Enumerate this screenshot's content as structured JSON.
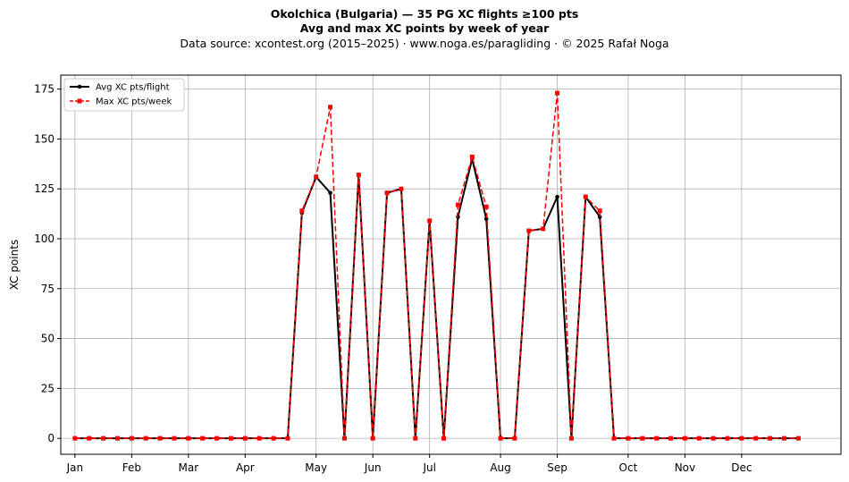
{
  "chart_data": {
    "type": "line",
    "title": "Okolchica (Bulgaria)  —  35 PG XC flights ≥100 pts",
    "subtitle": "Avg and max XC points by week of year",
    "source_line": "Data source: xcontest.org (2015–2025)  ·  www.noga.es/paragliding  ·  © 2025 Rafał Noga",
    "xlabel": "",
    "ylabel": "XC points",
    "x_week_range": [
      0,
      55
    ],
    "ylim": [
      -8,
      182
    ],
    "yticks": [
      0,
      25,
      50,
      75,
      100,
      125,
      150,
      175
    ],
    "x_ticks": [
      {
        "label": "Jan",
        "week": 1
      },
      {
        "label": "Feb",
        "week": 5
      },
      {
        "label": "Mar",
        "week": 9
      },
      {
        "label": "Apr",
        "week": 13
      },
      {
        "label": "May",
        "week": 18
      },
      {
        "label": "Jun",
        "week": 22
      },
      {
        "label": "Jul",
        "week": 26
      },
      {
        "label": "Aug",
        "week": 31
      },
      {
        "label": "Sep",
        "week": 35
      },
      {
        "label": "Oct",
        "week": 40
      },
      {
        "label": "Nov",
        "week": 44
      },
      {
        "label": "Dec",
        "week": 48
      }
    ],
    "grid": true,
    "legend_position": "top-left",
    "x": [
      1,
      2,
      3,
      4,
      5,
      6,
      7,
      8,
      9,
      10,
      11,
      12,
      13,
      14,
      15,
      16,
      17,
      18,
      19,
      20,
      21,
      22,
      23,
      24,
      25,
      26,
      27,
      28,
      29,
      30,
      31,
      32,
      33,
      34,
      35,
      36,
      37,
      38,
      39,
      40,
      41,
      42,
      43,
      44,
      45,
      46,
      47,
      48,
      49,
      50,
      51,
      52
    ],
    "series": [
      {
        "name": "Avg XC pts/flight",
        "color": "#000000",
        "style": "solid",
        "marker": "circle",
        "values": [
          0,
          0,
          0,
          0,
          0,
          0,
          0,
          0,
          0,
          0,
          0,
          0,
          0,
          0,
          0,
          0,
          113,
          131,
          123,
          0,
          132,
          0,
          123,
          125,
          0,
          109,
          0,
          111,
          140,
          110,
          0,
          0,
          104,
          105,
          121,
          0,
          121,
          111,
          0,
          0,
          0,
          0,
          0,
          0,
          0,
          0,
          0,
          0,
          0,
          0,
          0,
          0
        ]
      },
      {
        "name": "Max XC pts/week",
        "color": "#ff0000",
        "style": "dashed",
        "marker": "square",
        "values": [
          0,
          0,
          0,
          0,
          0,
          0,
          0,
          0,
          0,
          0,
          0,
          0,
          0,
          0,
          0,
          0,
          114,
          131,
          166,
          0,
          132,
          0,
          123,
          125,
          0,
          109,
          0,
          117,
          141,
          116,
          0,
          0,
          104,
          105,
          173,
          0,
          121,
          114,
          0,
          0,
          0,
          0,
          0,
          0,
          0,
          0,
          0,
          0,
          0,
          0,
          0,
          0
        ]
      }
    ]
  }
}
